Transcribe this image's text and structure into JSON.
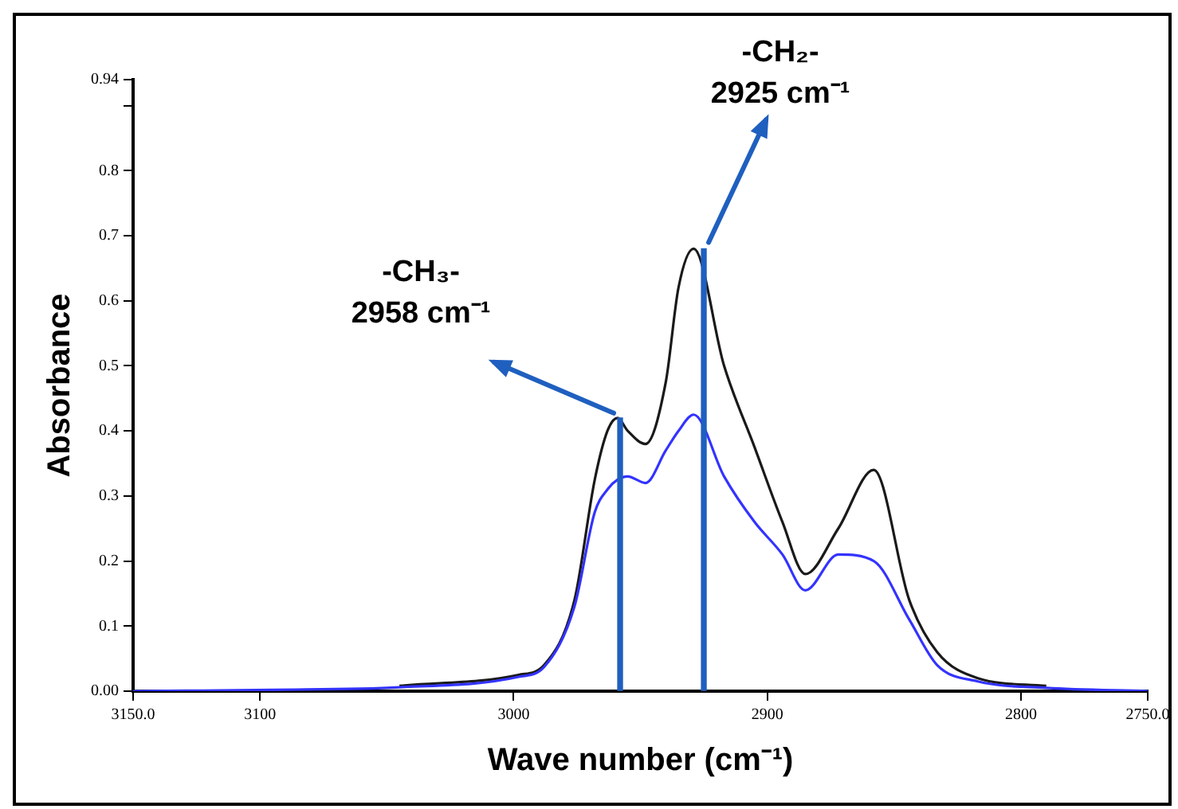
{
  "chart_data": {
    "type": "line",
    "xlabel": "Wave number (cm⁻¹)",
    "ylabel": "Absorbance",
    "x": [
      3150,
      3095,
      3045,
      2998,
      2988,
      2976,
      2968,
      2963,
      2959,
      2955,
      2948,
      2940,
      2935,
      2929,
      2917,
      2905,
      2894,
      2885,
      2872,
      2858,
      2844,
      2833,
      2817,
      2790,
      2750
    ],
    "series": [
      {
        "color": "#1a1a1a",
        "values": [
          null,
          null,
          0.008,
          0.025,
          0.04,
          0.14,
          0.325,
          0.4,
          0.42,
          0.4,
          0.38,
          0.475,
          0.62,
          0.68,
          0.5,
          0.375,
          0.26,
          0.18,
          0.25,
          0.34,
          0.14,
          0.06,
          0.02,
          0.008,
          null
        ]
      },
      {
        "color": "#3333ff",
        "values": [
          0,
          0.002,
          0.006,
          0.022,
          0.037,
          0.13,
          0.275,
          0.31,
          0.325,
          0.33,
          0.32,
          0.37,
          0.4,
          0.425,
          0.33,
          0.26,
          0.21,
          0.155,
          0.21,
          0.2,
          0.11,
          0.04,
          0.015,
          0.005,
          0
        ]
      },
      {
        "type": "bar",
        "color": "#1f5fbf",
        "x": [
          2958,
          2925
        ],
        "values": [
          0.42,
          0.68
        ]
      }
    ],
    "xlim": [
      3150,
      2750
    ],
    "xticks": [
      {
        "value": 3150,
        "label": "3150.0"
      },
      3100,
      3000,
      2900,
      2800,
      {
        "value": 2750,
        "label": "2750.0"
      }
    ],
    "ylim": [
      0,
      0.94
    ],
    "yticks": [
      {
        "value": 0,
        "label": "0.00"
      },
      0.1,
      0.2,
      0.3,
      0.4,
      0.5,
      0.6,
      0.7,
      0.8,
      {
        "value": 0.9,
        "label": null
      },
      0.94
    ],
    "annotations": [
      {
        "text": "-CH₃-\n2958 cm⁻¹",
        "x": 2958,
        "y": 0.42
      },
      {
        "text": "-CH₂-\n2925 cm⁻¹",
        "x": 2925,
        "y": 0.68
      }
    ],
    "grid": false,
    "legend": false,
    "marker": "none",
    "line_style": "solid"
  }
}
